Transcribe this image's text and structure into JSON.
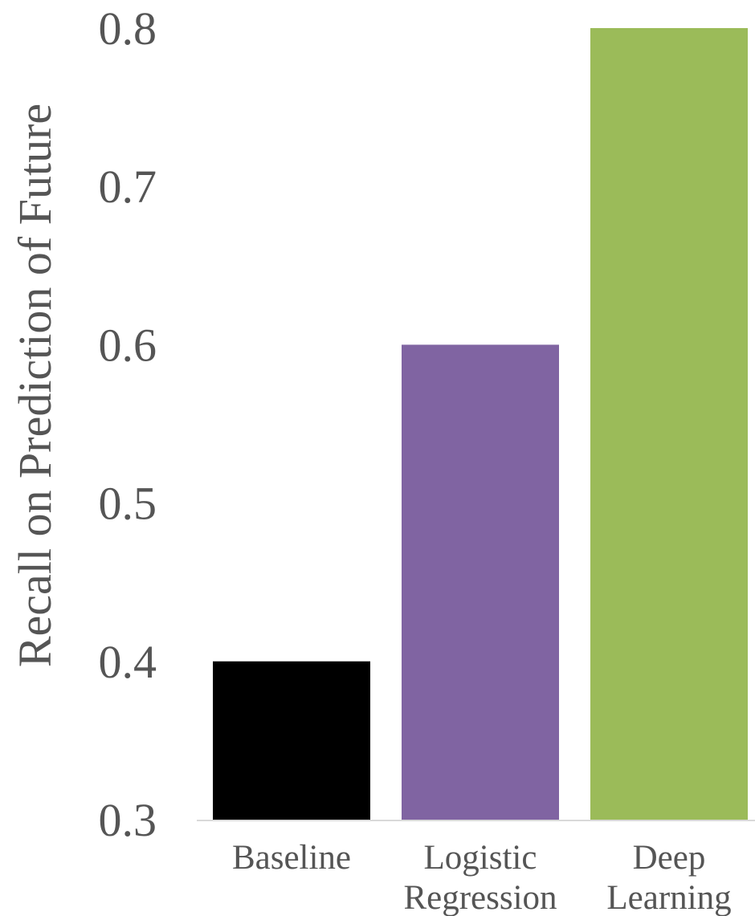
{
  "chart_data": {
    "type": "bar",
    "title": "",
    "xlabel": "",
    "ylabel": "Recall on Prediction of Future",
    "categories": [
      [
        "Baseline"
      ],
      [
        "Logistic",
        "Regression"
      ],
      [
        "Deep",
        "Learning"
      ]
    ],
    "values": [
      0.4,
      0.6,
      0.8
    ],
    "colors": [
      "#000000",
      "#8064A2",
      "#9BBB59"
    ],
    "ylim": [
      0.3,
      0.8
    ],
    "yticks": [
      0.3,
      0.4,
      0.5,
      0.6,
      0.7,
      0.8
    ],
    "ytick_labels": [
      "0.3",
      "0.4",
      "0.5",
      "0.6",
      "0.7",
      "0.8"
    ],
    "grid": false,
    "legend": "none",
    "axis_color": "#d9d9d9"
  }
}
